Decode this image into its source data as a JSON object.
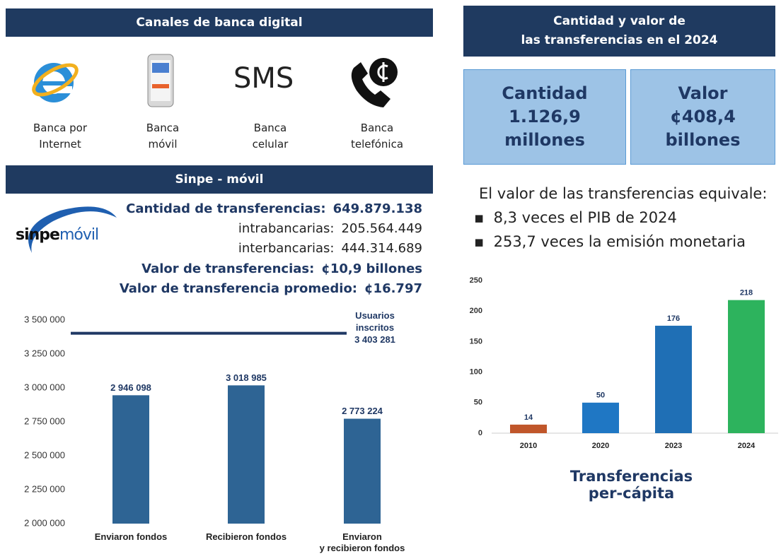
{
  "left": {
    "header1": "Canales de banca digital",
    "sms": "SMS",
    "channels": [
      "Banca por\nInternet",
      "Banca\nmóvil",
      "Banca\ncelular",
      "Banca\ntelefónica"
    ],
    "header2": "Sinpe - móvil",
    "logo": [
      "sinpe",
      "móvil"
    ],
    "stats": [
      {
        "label": "Cantidad de transferencias:",
        "value": "649.879.138"
      },
      {
        "label": "intrabancarias:",
        "value": "205.564.449"
      },
      {
        "label": "interbancarias:",
        "value": "444.314.689"
      },
      {
        "label": "Valor de transferencias:",
        "value": "¢10,9 billones"
      },
      {
        "label": "Valor de transferencia promedio:",
        "value": "¢16.797"
      }
    ]
  },
  "right": {
    "header": "Cantidad  y valor de\nlas transferencias  en el 2024",
    "boxes": [
      "Cantidad\n1.126,9\nmillones",
      "Valor\n¢408,4\nbillones"
    ],
    "equiv_title": "El valor de las transferencias equivale:",
    "bullets": [
      "8,3 veces el PIB de 2024",
      "253,7 veces la emisión monetaria"
    ]
  },
  "chart_data": [
    {
      "type": "bar",
      "categories": [
        "Enviaron fondos",
        "Recibieron fondos",
        "Enviaron\ny recibieron fondos"
      ],
      "values": [
        2946098,
        3018985,
        2773224
      ],
      "value_labels": [
        "2 946 098",
        "3 018 985",
        "2 773 224"
      ],
      "color": "#2e6494",
      "ylim": [
        2000000,
        3500000
      ],
      "yticks": [
        {
          "value": 2000000,
          "label": "2 000 000"
        },
        {
          "value": 2250000,
          "label": "2 250 000"
        },
        {
          "value": 2500000,
          "label": "2 500 000"
        },
        {
          "value": 2750000,
          "label": "2 750 000"
        },
        {
          "value": 3000000,
          "label": "3 000 000"
        },
        {
          "value": 3250000,
          "label": "3 250 000"
        },
        {
          "value": 3500000,
          "label": "3 500 000"
        }
      ],
      "reference_line": {
        "label": "Usuarios\ninscritos",
        "value": 3403281,
        "value_label": "3 403 281",
        "color": "#1f3864"
      }
    },
    {
      "type": "bar",
      "title": "Transferencias per-cápita",
      "categories": [
        "2010",
        "2020",
        "2023",
        "2024"
      ],
      "values": [
        14,
        50,
        176,
        218
      ],
      "colors": [
        "#c0562a",
        "#1f77c4",
        "#1f6fb5",
        "#2db35d"
      ],
      "ylim": [
        0,
        250
      ],
      "yticks": [
        0,
        50,
        100,
        150,
        200,
        250
      ]
    }
  ]
}
